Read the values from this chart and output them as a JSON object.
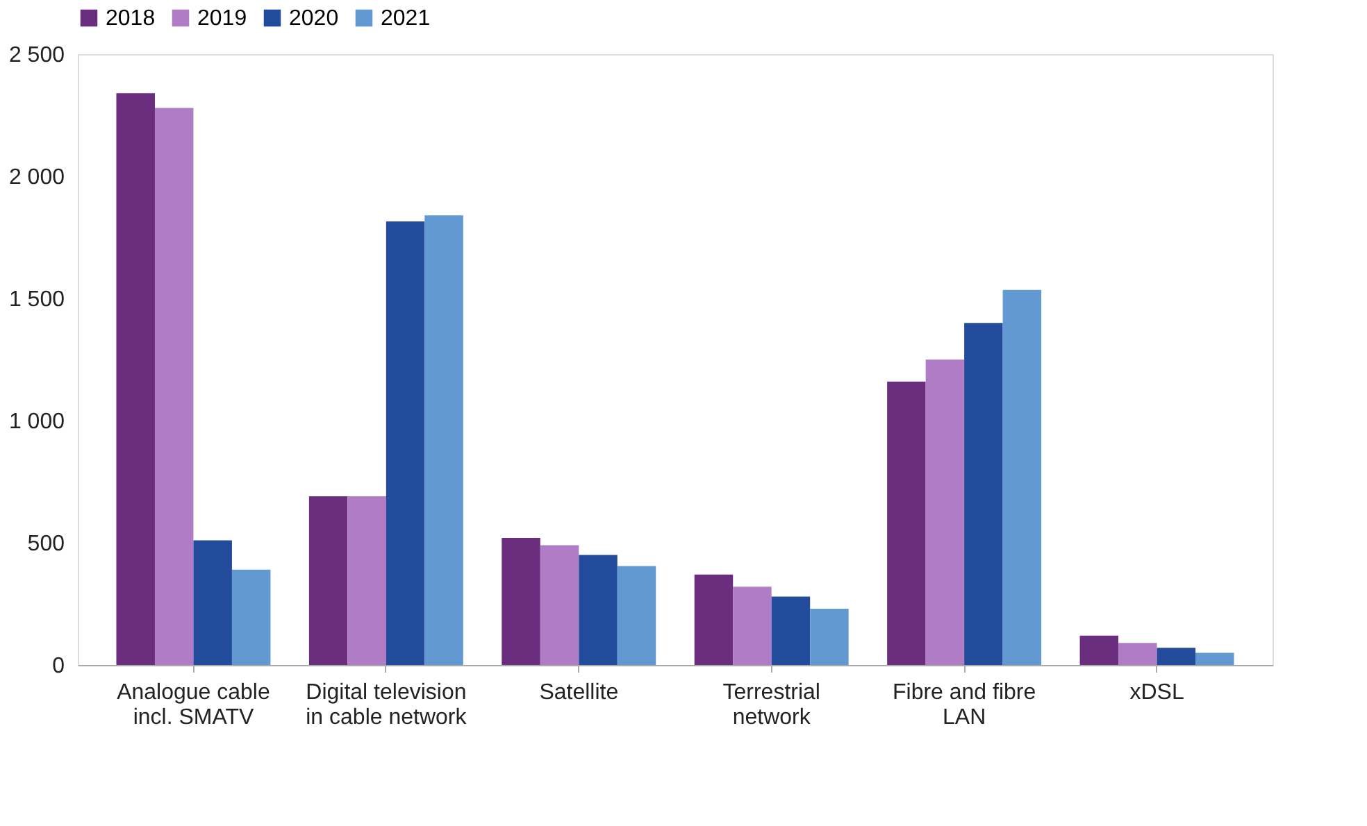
{
  "chart_data": {
    "type": "bar",
    "categories": [
      "Analogue cable\nincl. SMATV",
      "Digital television\nin cable network",
      "Satellite",
      "Terrestrial\nnetwork",
      "Fibre and fibre\nLAN",
      "xDSL"
    ],
    "series": [
      {
        "name": "2018",
        "color": "#6b2d7e",
        "values": [
          2340,
          690,
          520,
          370,
          1160,
          120
        ]
      },
      {
        "name": "2019",
        "color": "#b07cc6",
        "values": [
          2280,
          690,
          490,
          320,
          1250,
          90
        ]
      },
      {
        "name": "2020",
        "color": "#234b9b",
        "values": [
          510,
          1815,
          450,
          280,
          1400,
          70
        ]
      },
      {
        "name": "2021",
        "color": "#6399d3",
        "values": [
          390,
          1840,
          405,
          230,
          1535,
          50
        ]
      }
    ],
    "ylim": [
      0,
      2500
    ],
    "yticks": [
      {
        "value": 0,
        "label": "0"
      },
      {
        "value": 500,
        "label": "500"
      },
      {
        "value": 1000,
        "label": "1 000"
      },
      {
        "value": 1500,
        "label": "1 500"
      },
      {
        "value": 2000,
        "label": "2 000"
      },
      {
        "value": 2500,
        "label": "2 500"
      }
    ],
    "grid": false,
    "legend": "top"
  }
}
